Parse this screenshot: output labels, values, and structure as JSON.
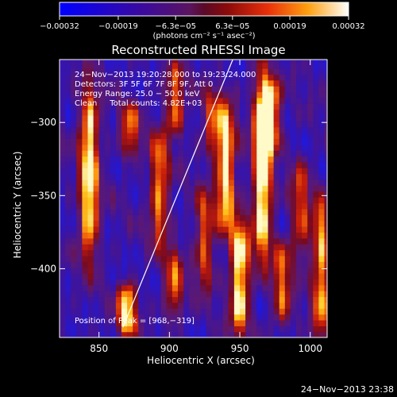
{
  "chart_data": {
    "type": "heatmap",
    "title": "Reconstructed RHESSI Image",
    "xlabel": "Heliocentric X (arcsec)",
    "ylabel": "Heliocentric Y (arcsec)",
    "xlim": [
      822,
      1012
    ],
    "ylim": [
      -447,
      -257
    ],
    "x_ticks": [
      850,
      900,
      950,
      1000
    ],
    "y_ticks": [
      -300,
      -350,
      -400
    ],
    "x_tick_labels": [
      "850",
      "900",
      "950",
      "1000"
    ],
    "y_tick_labels": [
      "−300",
      "−350",
      "−400"
    ],
    "colorbar": {
      "range": [
        -0.00032,
        0.00032
      ],
      "ticks": [
        -0.00032,
        -0.00019,
        -6.3e-05,
        6.3e-05,
        0.00019,
        0.00032
      ],
      "tick_labels": [
        "−0.00032",
        "−0.00019",
        "−6.3e−05",
        "6.3e−05",
        "0.00019",
        "0.00032"
      ],
      "unit_label": "(photons cm⁻² s⁻¹ asec⁻²)"
    },
    "annotations": [
      "24−Nov−2013 19:20:28.000 to 19:23:24.000",
      "Detectors: 3F 5F 6F 7F 8F 9F, Att 0",
      "Energy Range: 25.0 − 50.0 keV",
      "Clean     Total counts: 4.82E+03",
      "Position of Peak = [968,−319]"
    ],
    "limb_line": {
      "x": [
        867,
        945
      ],
      "y": [
        -440,
        -257
      ]
    },
    "footer_timestamp": "24−Nov−2013 23:38",
    "stripes": [
      {
        "x": 843,
        "y_center": -335,
        "y_half": 60,
        "amp": 0.9
      },
      {
        "x": 870,
        "y_center": -428,
        "y_half": 18,
        "amp": 0.85
      },
      {
        "x": 872,
        "y_center": -305,
        "y_half": 20,
        "amp": 0.55
      },
      {
        "x": 893,
        "y_center": -345,
        "y_half": 40,
        "amp": 0.65
      },
      {
        "x": 904,
        "y_center": -285,
        "y_half": 25,
        "amp": 0.6
      },
      {
        "x": 903,
        "y_center": -410,
        "y_half": 25,
        "amp": 0.55
      },
      {
        "x": 925,
        "y_center": -380,
        "y_half": 35,
        "amp": 0.55
      },
      {
        "x": 930,
        "y_center": -300,
        "y_half": 25,
        "amp": 0.45
      },
      {
        "x": 940,
        "y_center": -330,
        "y_half": 45,
        "amp": 0.85
      },
      {
        "x": 950,
        "y_center": -405,
        "y_half": 40,
        "amp": 0.9
      },
      {
        "x": 966,
        "y_center": -330,
        "y_half": 65,
        "amp": 0.98
      },
      {
        "x": 972,
        "y_center": -295,
        "y_half": 25,
        "amp": 0.8
      },
      {
        "x": 980,
        "y_center": -410,
        "y_half": 30,
        "amp": 0.55
      },
      {
        "x": 993,
        "y_center": -360,
        "y_half": 35,
        "amp": 0.5
      },
      {
        "x": 1008,
        "y_center": -400,
        "y_half": 50,
        "amp": 0.7
      }
    ]
  }
}
